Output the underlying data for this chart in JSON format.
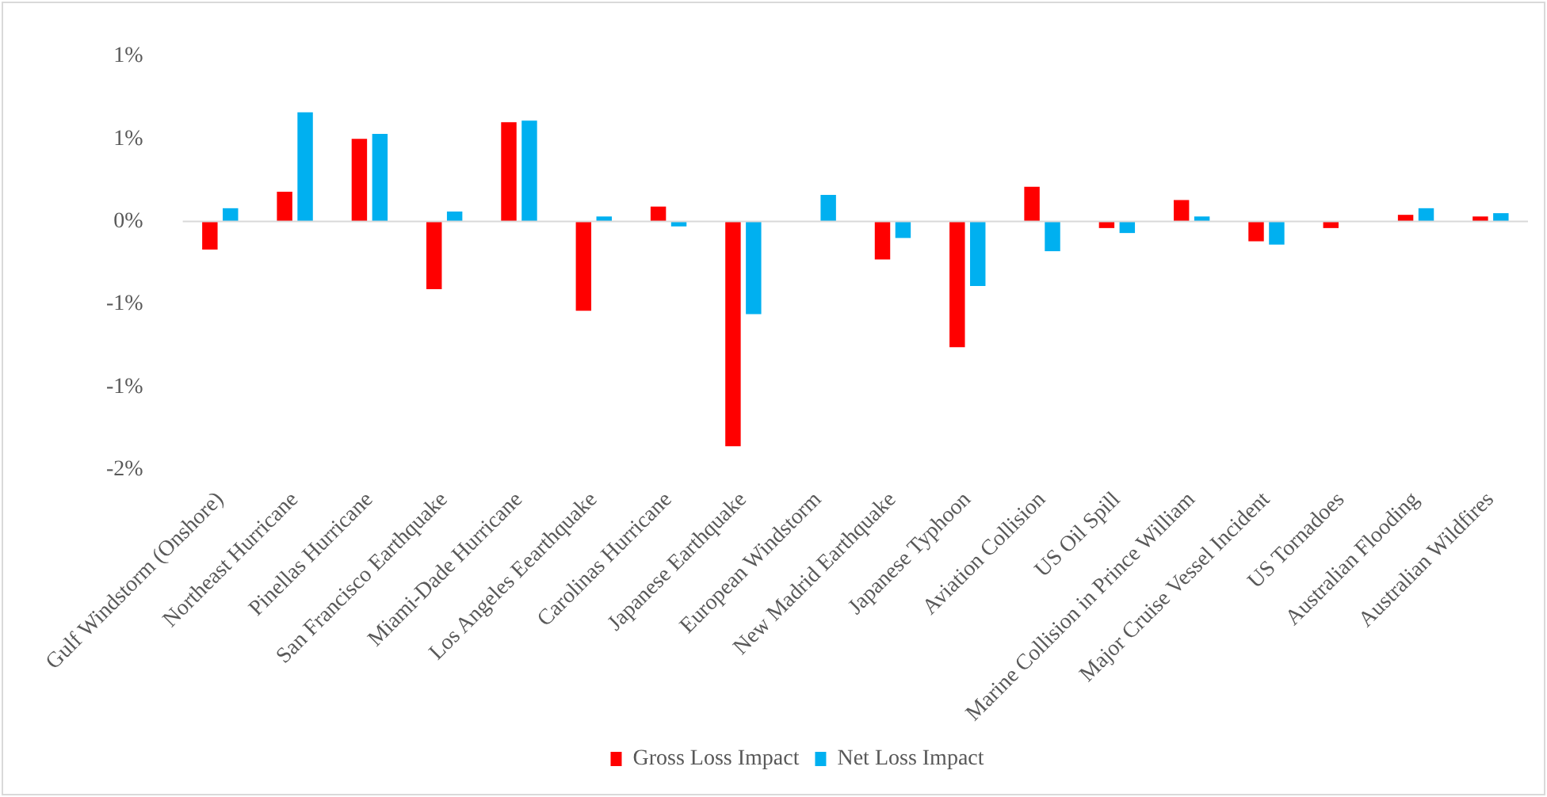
{
  "chart_data": {
    "type": "bar",
    "categories": [
      "Gulf Windstorm (Onshore)",
      "Northeast Hurricane",
      "Pinellas Hurricane",
      "San Francisco Earthquake",
      "Miami-Dade Hurricane",
      "Los Angeles Eearthquake",
      "Carolinas Hurricane",
      "Japanese Earthquake",
      "European Windstorm",
      "New Madrid Earthquake",
      "Japanese Typhoon",
      "Aviation Collision",
      "US Oil Spill",
      "Marine Collision in Prince William",
      "Major Cruise Vessel Incident",
      "US Tornadoes",
      "Australian Flooding",
      "Australian Wildfires"
    ],
    "series": [
      {
        "name": "Gross Loss Impact",
        "color": "#ff0000",
        "values": [
          -0.17,
          0.18,
          0.5,
          -0.41,
          0.6,
          -0.54,
          0.09,
          -1.36,
          0,
          -0.23,
          -0.76,
          0.21,
          -0.04,
          0.13,
          -0.12,
          -0.04,
          0.04,
          0.03
        ]
      },
      {
        "name": "Net Loss Impact",
        "color": "#00b0f0",
        "values": [
          0.08,
          0.66,
          0.53,
          0.06,
          0.61,
          0.03,
          -0.03,
          -0.56,
          0.16,
          -0.1,
          -0.39,
          -0.18,
          -0.07,
          0.03,
          -0.14,
          0,
          0.08,
          0.05
        ]
      }
    ],
    "ylim": [
      -1.5,
      1
    ],
    "yticks": [
      {
        "value": -1.5,
        "label": "-2%"
      },
      {
        "value": -1,
        "label": "-1%"
      },
      {
        "value": -0.5,
        "label": "-1%"
      },
      {
        "value": 0,
        "label": "0%"
      },
      {
        "value": 0.5,
        "label": "1%"
      },
      {
        "value": 1,
        "label": "1%"
      }
    ],
    "grid": false,
    "ref_lines": [
      {
        "axis": "y",
        "value": 0,
        "color": "#d9d9d9"
      }
    ],
    "legend": "bottom"
  }
}
